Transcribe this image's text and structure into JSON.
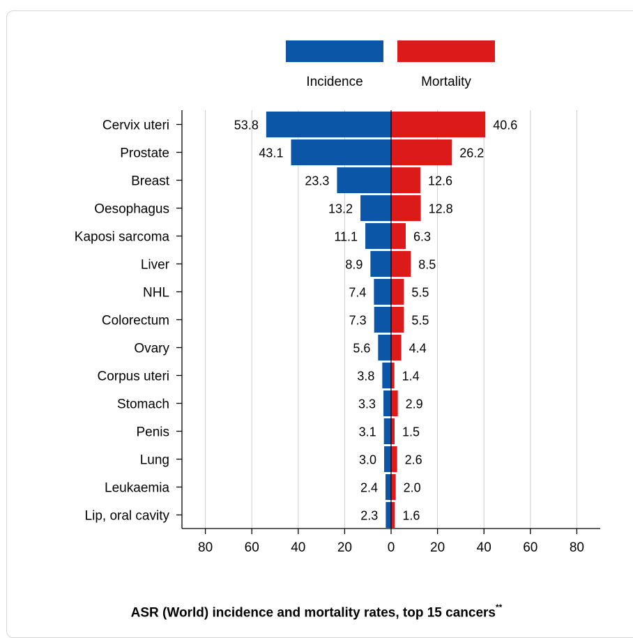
{
  "chart_data": {
    "type": "bar",
    "orientation": "horizontal-butterfly",
    "title": "ASR (World) incidence and mortality rates, top 15 cancers",
    "title_superscript": "**",
    "categories": [
      "Cervix uteri",
      "Prostate",
      "Breast",
      "Oesophagus",
      "Kaposi sarcoma",
      "Liver",
      "NHL",
      "Colorectum",
      "Ovary",
      "Corpus uteri",
      "Stomach",
      "Penis",
      "Lung",
      "Leukaemia",
      "Lip, oral cavity"
    ],
    "series": [
      {
        "name": "Incidence",
        "color": "#0b56a6",
        "side": "left",
        "values": [
          53.8,
          43.1,
          23.3,
          13.2,
          11.1,
          8.9,
          7.4,
          7.3,
          5.6,
          3.8,
          3.3,
          3.1,
          3.0,
          2.4,
          2.3
        ],
        "labels": [
          "53.8",
          "43.1",
          "23.3",
          "13.2",
          "11.1",
          "8.9",
          "7.4",
          "7.3",
          "5.6",
          "3.8",
          "3.3",
          "3.1",
          "3.0",
          "2.4",
          "2.3"
        ]
      },
      {
        "name": "Mortality",
        "color": "#dc1a1a",
        "side": "right",
        "values": [
          40.6,
          26.2,
          12.6,
          12.8,
          6.3,
          8.5,
          5.5,
          5.5,
          4.4,
          1.4,
          2.9,
          1.5,
          2.6,
          2.0,
          1.6
        ],
        "labels": [
          "40.6",
          "26.2",
          "12.6",
          "12.8",
          "6.3",
          "8.5",
          "5.5",
          "5.5",
          "4.4",
          "1.4",
          "2.9",
          "1.5",
          "2.6",
          "2.0",
          "1.6"
        ]
      }
    ],
    "x_ticks": [
      -80,
      -60,
      -40,
      -20,
      0,
      20,
      40,
      60,
      80
    ],
    "x_tick_labels": [
      "80",
      "60",
      "40",
      "20",
      "0",
      "20",
      "40",
      "60",
      "80"
    ],
    "xlim": [
      -90,
      90
    ],
    "grid": "vertical",
    "legend_placement": "top-center"
  }
}
